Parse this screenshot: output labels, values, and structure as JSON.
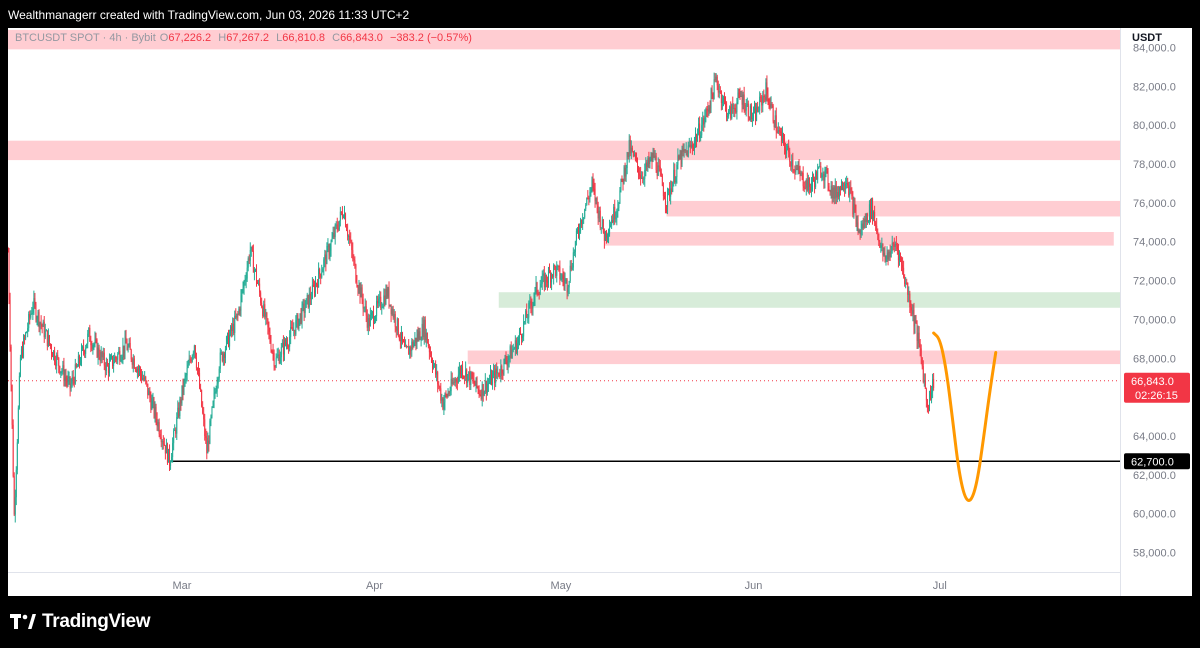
{
  "header": {
    "attribution": "Wealthmanagerr created with TradingView.com, Jun 03, 2026 11:33 UTC+2"
  },
  "legend": {
    "symbol": "BTCUSDT SPOT · 4h · Bybit",
    "open_label": "O",
    "open": "67,226.2",
    "high_label": "H",
    "high": "67,267.2",
    "low_label": "L",
    "low": "66,810.8",
    "close_label": "C",
    "close": "66,843.0",
    "change": "−383.2 (−0.57%)"
  },
  "currency": "USDT",
  "footer": {
    "brand": "TradingView"
  },
  "colors": {
    "up": "#22ab94",
    "down": "#f23645",
    "resistance_zone": "#ffcdd2",
    "support_zone": "#d7ecd9",
    "projection": "#ff9800",
    "level_line": "#000000"
  },
  "chart_data": {
    "type": "candlestick",
    "interval": "4h",
    "yaxis": {
      "range": [
        57000,
        85000
      ],
      "ticks": [
        58000,
        60000,
        62000,
        64000,
        66000,
        68000,
        70000,
        72000,
        74000,
        76000,
        78000,
        80000,
        82000,
        84000
      ],
      "tick_labels": [
        "58,000.0",
        "60,000.0",
        "62,000.0",
        "64,000.0",
        "66,000.0",
        "68,000.0",
        "70,000.0",
        "72,000.0",
        "74,000.0",
        "76,000.0",
        "78,000.0",
        "80,000.0",
        "82,000.0",
        "84,000.0"
      ]
    },
    "xaxis": {
      "range": [
        "2026-02-01",
        "2026-07-30"
      ],
      "ticks": [
        "2026-03-01",
        "2026-04-01",
        "2026-05-01",
        "2026-06-01",
        "2026-07-01"
      ],
      "tick_labels": [
        "Mar",
        "Apr",
        "May",
        "Jun",
        "Jul"
      ]
    },
    "price_path": [
      [
        "2026-02-01",
        73500
      ],
      [
        "2026-02-02",
        59900
      ],
      [
        "2026-02-03",
        68000
      ],
      [
        "2026-02-05",
        70800
      ],
      [
        "2026-02-08",
        68500
      ],
      [
        "2026-02-11",
        66500
      ],
      [
        "2026-02-14",
        69200
      ],
      [
        "2026-02-17",
        67500
      ],
      [
        "2026-02-20",
        68700
      ],
      [
        "2026-02-23",
        66800
      ],
      [
        "2026-02-26",
        63800
      ],
      [
        "2026-02-27",
        62700
      ],
      [
        "2026-03-01",
        66200
      ],
      [
        "2026-03-03",
        68800
      ],
      [
        "2026-03-05",
        63200
      ],
      [
        "2026-03-07",
        67800
      ],
      [
        "2026-03-10",
        70200
      ],
      [
        "2026-03-12",
        73600
      ],
      [
        "2026-03-14",
        70600
      ],
      [
        "2026-03-16",
        67800
      ],
      [
        "2026-03-19",
        69500
      ],
      [
        "2026-03-22",
        71400
      ],
      [
        "2026-03-25",
        73900
      ],
      [
        "2026-03-27",
        75700
      ],
      [
        "2026-03-29",
        72300
      ],
      [
        "2026-03-31",
        69800
      ],
      [
        "2026-04-03",
        71400
      ],
      [
        "2026-04-06",
        68200
      ],
      [
        "2026-04-09",
        69600
      ],
      [
        "2026-04-12",
        65700
      ],
      [
        "2026-04-15",
        67500
      ],
      [
        "2026-04-18",
        66300
      ],
      [
        "2026-04-21",
        67300
      ],
      [
        "2026-04-24",
        68800
      ],
      [
        "2026-04-27",
        71500
      ],
      [
        "2026-04-30",
        72600
      ],
      [
        "2026-05-02",
        71800
      ],
      [
        "2026-05-04",
        74900
      ],
      [
        "2026-05-06",
        76900
      ],
      [
        "2026-05-08",
        74300
      ],
      [
        "2026-05-10",
        75800
      ],
      [
        "2026-05-12",
        78800
      ],
      [
        "2026-05-14",
        77400
      ],
      [
        "2026-05-16",
        78400
      ],
      [
        "2026-05-18",
        76100
      ],
      [
        "2026-05-20",
        78200
      ],
      [
        "2026-05-22",
        78900
      ],
      [
        "2026-05-24",
        80200
      ],
      [
        "2026-05-26",
        82300
      ],
      [
        "2026-05-28",
        80500
      ],
      [
        "2026-05-30",
        81500
      ],
      [
        "2026-06-01",
        80300
      ],
      [
        "2026-06-03",
        81800
      ],
      [
        "2026-06-05",
        79600
      ],
      [
        "2026-06-08",
        77600
      ],
      [
        "2026-06-10",
        76800
      ],
      [
        "2026-06-12",
        77800
      ],
      [
        "2026-06-14",
        76400
      ],
      [
        "2026-06-16",
        77300
      ],
      [
        "2026-06-18",
        74400
      ],
      [
        "2026-06-20",
        75800
      ],
      [
        "2026-06-22",
        73100
      ],
      [
        "2026-06-24",
        73900
      ],
      [
        "2026-06-25",
        72600
      ],
      [
        "2026-06-27",
        69800
      ],
      [
        "2026-06-28",
        68000
      ],
      [
        "2026-06-29",
        65600
      ],
      [
        "2026-06-30",
        66843
      ]
    ],
    "zones": [
      {
        "kind": "resistance",
        "from": "2026-02-01",
        "to": "2026-07-30",
        "low": 83900,
        "high": 84900
      },
      {
        "kind": "resistance",
        "from": "2026-02-01",
        "to": "2026-07-30",
        "low": 78200,
        "high": 79200
      },
      {
        "kind": "resistance",
        "from": "2026-05-18",
        "to": "2026-07-30",
        "low": 75300,
        "high": 76100
      },
      {
        "kind": "resistance",
        "from": "2026-05-08",
        "to": "2026-07-29",
        "low": 73800,
        "high": 74500
      },
      {
        "kind": "support",
        "from": "2026-04-21",
        "to": "2026-07-30",
        "low": 70600,
        "high": 71400
      },
      {
        "kind": "resistance",
        "from": "2026-04-16",
        "to": "2026-07-30",
        "low": 67700,
        "high": 68400
      }
    ],
    "horizontal_level": {
      "from": "2026-02-27",
      "value": 62700,
      "label": "62,700.0"
    },
    "last_price": {
      "value": 66843,
      "label": "66,843.0",
      "countdown": "02:26:15"
    },
    "projection": [
      [
        "2026-06-30",
        69300
      ],
      [
        "2026-07-01",
        69000
      ],
      [
        "2026-07-02",
        67500
      ],
      [
        "2026-07-03",
        65000
      ],
      [
        "2026-07-04",
        62300
      ],
      [
        "2026-07-05",
        60800
      ],
      [
        "2026-07-06",
        60600
      ],
      [
        "2026-07-07",
        61600
      ],
      [
        "2026-07-08",
        63800
      ],
      [
        "2026-07-09",
        66200
      ],
      [
        "2026-07-10",
        68300
      ]
    ]
  }
}
